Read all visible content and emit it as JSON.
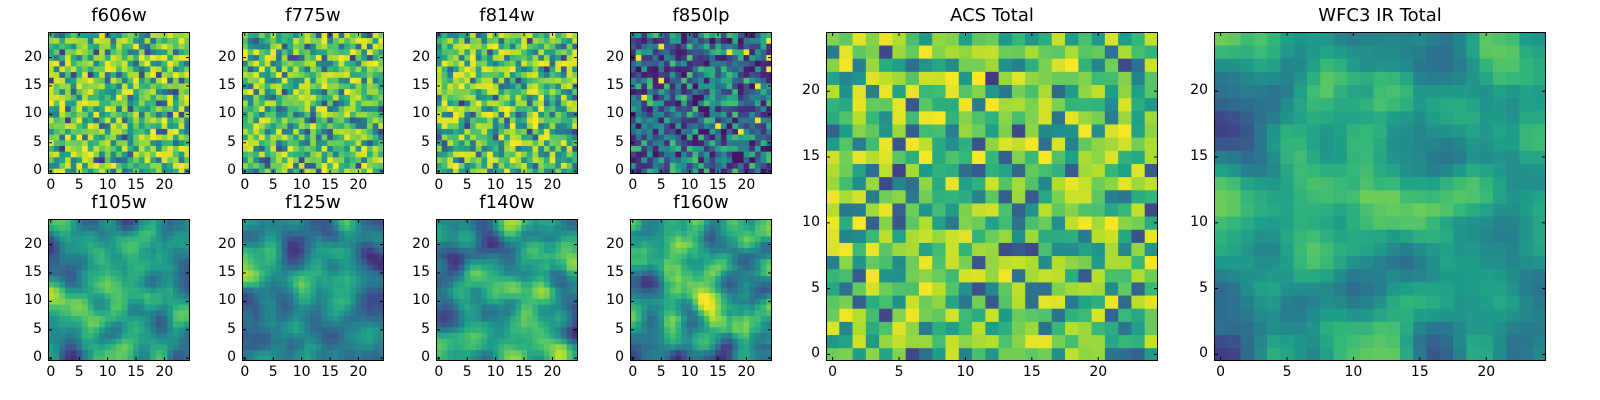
{
  "chart_data": [
    {
      "type": "heatmap",
      "title": "f606w",
      "colormap": "viridis",
      "grid_size": [
        25,
        25
      ],
      "xlim": [
        -0.5,
        24.5
      ],
      "ylim": [
        -0.5,
        24.5
      ],
      "x_ticks": [
        "0",
        "5",
        "10",
        "15",
        "20"
      ],
      "y_ticks": [
        "0",
        "5",
        "10",
        "15",
        "20"
      ],
      "pattern": "noise",
      "seed": 11,
      "values_note": "per-pixel noise, mean high"
    },
    {
      "type": "heatmap",
      "title": "f775w",
      "colormap": "viridis",
      "grid_size": [
        25,
        25
      ],
      "xlim": [
        -0.5,
        24.5
      ],
      "ylim": [
        -0.5,
        24.5
      ],
      "x_ticks": [
        "0",
        "5",
        "10",
        "15",
        "20"
      ],
      "y_ticks": [
        "0",
        "5",
        "10",
        "15",
        "20"
      ],
      "pattern": "noise",
      "seed": 23
    },
    {
      "type": "heatmap",
      "title": "f814w",
      "colormap": "viridis",
      "grid_size": [
        25,
        25
      ],
      "xlim": [
        -0.5,
        24.5
      ],
      "ylim": [
        -0.5,
        24.5
      ],
      "x_ticks": [
        "0",
        "5",
        "10",
        "15",
        "20"
      ],
      "y_ticks": [
        "0",
        "5",
        "10",
        "15",
        "20"
      ],
      "pattern": "noise",
      "seed": 37
    },
    {
      "type": "heatmap",
      "title": "f850lp",
      "colormap": "viridis",
      "grid_size": [
        25,
        25
      ],
      "xlim": [
        -0.5,
        24.5
      ],
      "ylim": [
        -0.5,
        24.5
      ],
      "x_ticks": [
        "0",
        "5",
        "10",
        "15",
        "20"
      ],
      "y_ticks": [
        "0",
        "5",
        "10",
        "15",
        "20"
      ],
      "pattern": "noise-low",
      "seed": 41
    },
    {
      "type": "heatmap",
      "title": "f105w",
      "colormap": "viridis",
      "grid_size": [
        25,
        25
      ],
      "xlim": [
        -0.5,
        24.5
      ],
      "ylim": [
        -0.5,
        24.5
      ],
      "x_ticks": [
        "0",
        "5",
        "10",
        "15",
        "20"
      ],
      "y_ticks": [
        "0",
        "5",
        "10",
        "15",
        "20"
      ],
      "pattern": "smooth",
      "seed": 53
    },
    {
      "type": "heatmap",
      "title": "f125w",
      "colormap": "viridis",
      "grid_size": [
        25,
        25
      ],
      "xlim": [
        -0.5,
        24.5
      ],
      "ylim": [
        -0.5,
        24.5
      ],
      "x_ticks": [
        "0",
        "5",
        "10",
        "15",
        "20"
      ],
      "y_ticks": [
        "0",
        "5",
        "10",
        "15",
        "20"
      ],
      "pattern": "smooth",
      "seed": 67
    },
    {
      "type": "heatmap",
      "title": "f140w",
      "colormap": "viridis",
      "grid_size": [
        25,
        25
      ],
      "xlim": [
        -0.5,
        24.5
      ],
      "ylim": [
        -0.5,
        24.5
      ],
      "x_ticks": [
        "0",
        "5",
        "10",
        "15",
        "20"
      ],
      "y_ticks": [
        "0",
        "5",
        "10",
        "15",
        "20"
      ],
      "pattern": "smooth",
      "seed": 71
    },
    {
      "type": "heatmap",
      "title": "f160w",
      "colormap": "viridis",
      "grid_size": [
        25,
        25
      ],
      "xlim": [
        -0.5,
        24.5
      ],
      "ylim": [
        -0.5,
        24.5
      ],
      "x_ticks": [
        "0",
        "5",
        "10",
        "15",
        "20"
      ],
      "y_ticks": [
        "0",
        "5",
        "10",
        "15",
        "20"
      ],
      "pattern": "smooth",
      "seed": 83
    },
    {
      "type": "heatmap",
      "title": "ACS Total",
      "colormap": "viridis",
      "grid_size": [
        25,
        25
      ],
      "xlim": [
        -0.5,
        24.5
      ],
      "ylim": [
        -0.5,
        24.5
      ],
      "x_ticks": [
        "0",
        "5",
        "10",
        "15",
        "20"
      ],
      "y_ticks": [
        "0",
        "5",
        "10",
        "15",
        "20"
      ],
      "pattern": "noise",
      "seed": 97
    },
    {
      "type": "heatmap",
      "title": "WFC3 IR Total",
      "colormap": "viridis",
      "grid_size": [
        25,
        25
      ],
      "xlim": [
        -0.5,
        24.5
      ],
      "ylim": [
        -0.5,
        24.5
      ],
      "x_ticks": [
        "0",
        "5",
        "10",
        "15",
        "20"
      ],
      "y_ticks": [
        "0",
        "5",
        "10",
        "15",
        "20"
      ],
      "pattern": "smooth-center",
      "seed": 101
    }
  ]
}
